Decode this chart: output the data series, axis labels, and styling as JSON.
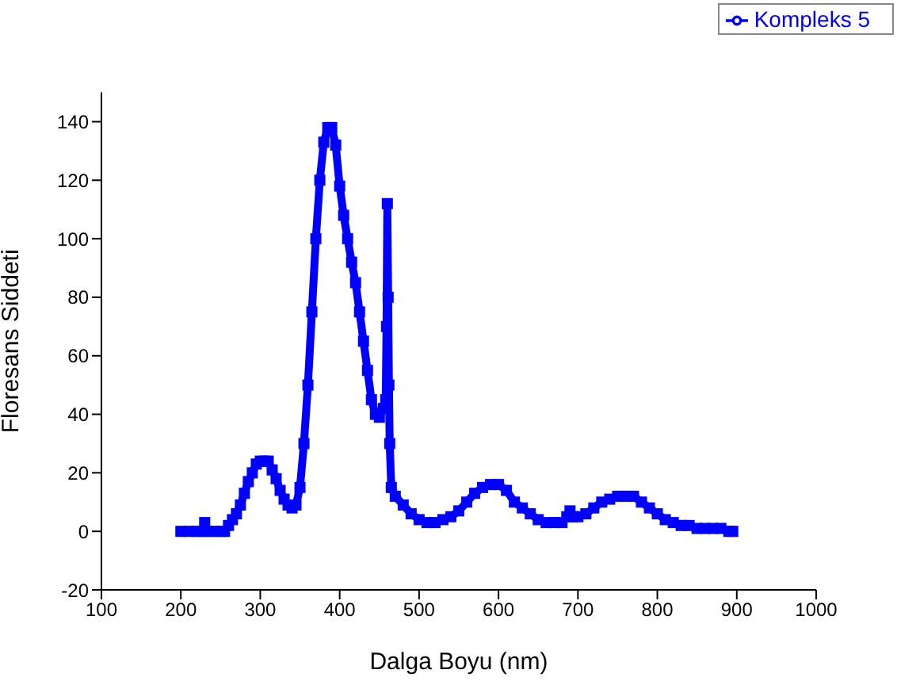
{
  "chart_data": {
    "type": "line",
    "xlabel": "Dalga Boyu (nm)",
    "ylabel": "Floresans Siddeti",
    "x": [
      200,
      210,
      220,
      226,
      230,
      234,
      240,
      250,
      255,
      260,
      265,
      270,
      275,
      280,
      285,
      290,
      295,
      300,
      305,
      310,
      315,
      320,
      325,
      330,
      335,
      340,
      345,
      350,
      355,
      360,
      365,
      370,
      375,
      380,
      385,
      390,
      395,
      400,
      405,
      410,
      415,
      420,
      425,
      430,
      435,
      440,
      445,
      450,
      455,
      458,
      459,
      460,
      461,
      462,
      463,
      465,
      470,
      480,
      490,
      500,
      510,
      520,
      530,
      540,
      550,
      560,
      570,
      580,
      590,
      600,
      610,
      620,
      630,
      640,
      650,
      660,
      670,
      680,
      686,
      690,
      694,
      700,
      710,
      720,
      730,
      740,
      750,
      760,
      770,
      780,
      790,
      800,
      810,
      820,
      830,
      840,
      850,
      860,
      870,
      880,
      890,
      895
    ],
    "series": [
      {
        "name": "Kompleks 5",
        "color": "#0000ff",
        "values": [
          0,
          0,
          0,
          0,
          3,
          0,
          0,
          0,
          0,
          2,
          4,
          6,
          9,
          13,
          17,
          20,
          23,
          24,
          24,
          24,
          21,
          18,
          14,
          11,
          9,
          8,
          9,
          15,
          30,
          50,
          75,
          100,
          120,
          133,
          138,
          138,
          132,
          118,
          108,
          100,
          92,
          85,
          75,
          65,
          55,
          45,
          40,
          39,
          42,
          45,
          70,
          112,
          80,
          50,
          30,
          15,
          12,
          9,
          6,
          4,
          3,
          3,
          4,
          5,
          7,
          10,
          13,
          15,
          16,
          16,
          14,
          10,
          8,
          6,
          4,
          3,
          3,
          3,
          5,
          7,
          5,
          5,
          6,
          8,
          10,
          11,
          12,
          12,
          12,
          10,
          8,
          6,
          4,
          3,
          2,
          2,
          1,
          1,
          1,
          1,
          0,
          0
        ]
      }
    ],
    "xlim": [
      100,
      1000
    ],
    "xticks": [
      100,
      200,
      300,
      400,
      500,
      600,
      700,
      800,
      900,
      1000
    ],
    "ylim": [
      -20,
      150
    ],
    "yticks": [
      -20,
      0,
      20,
      40,
      60,
      80,
      100,
      120,
      140
    ],
    "marker": "square",
    "line_style": "solid",
    "legend": "top right",
    "grid": false
  }
}
